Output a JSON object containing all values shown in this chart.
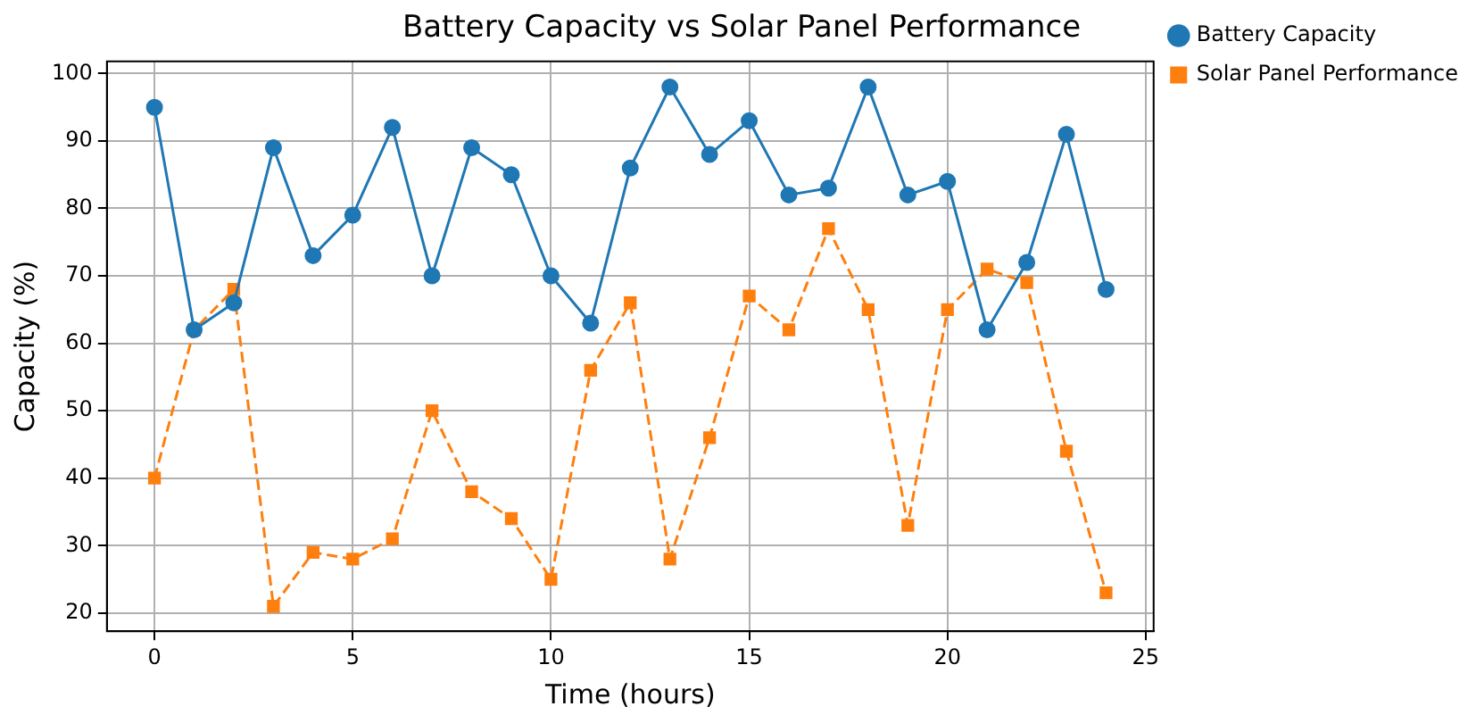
{
  "chart_data": {
    "type": "line",
    "title": "Battery Capacity vs Solar Panel Performance",
    "xlabel": "Time (hours)",
    "ylabel": "Capacity (%)",
    "x": [
      0,
      1,
      2,
      3,
      4,
      5,
      6,
      7,
      8,
      9,
      10,
      11,
      12,
      13,
      14,
      15,
      16,
      17,
      18,
      19,
      20,
      21,
      22,
      23,
      24
    ],
    "series": [
      {
        "name": "Battery Capacity",
        "color": "#1f77b4",
        "marker": "circle",
        "line_style": "solid",
        "values": [
          95,
          62,
          66,
          89,
          73,
          79,
          92,
          70,
          89,
          85,
          70,
          63,
          86,
          98,
          88,
          93,
          82,
          83,
          98,
          82,
          84,
          62,
          72,
          91,
          68
        ]
      },
      {
        "name": "Solar Panel Performance",
        "color": "#ff7f0e",
        "marker": "square",
        "line_style": "dashed",
        "values": [
          40,
          62,
          68,
          21,
          29,
          28,
          31,
          50,
          38,
          34,
          25,
          56,
          66,
          28,
          46,
          67,
          62,
          77,
          65,
          33,
          65,
          71,
          69,
          44,
          23
        ]
      }
    ],
    "xlim": [
      -1.2,
      25.2
    ],
    "xticks": [
      0,
      5,
      10,
      15,
      20,
      25
    ],
    "ylim": [
      17.3,
      101.8
    ],
    "yticks": [
      20,
      30,
      40,
      50,
      60,
      70,
      80,
      90,
      100
    ],
    "grid": true,
    "legend": "top right"
  }
}
